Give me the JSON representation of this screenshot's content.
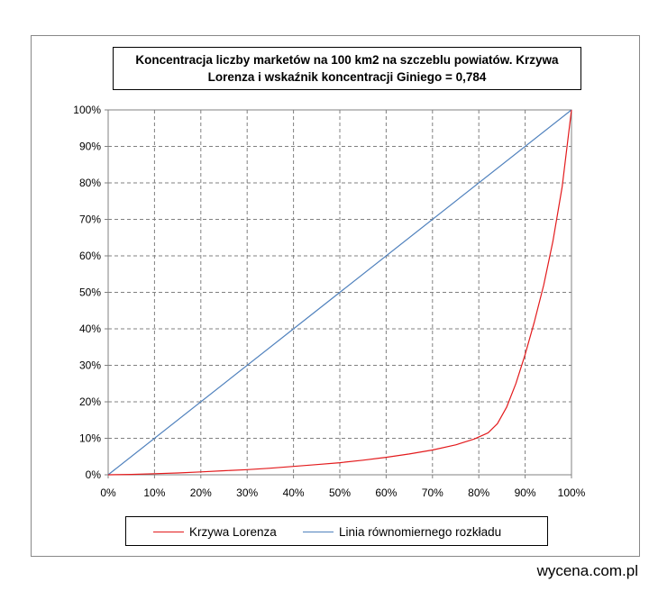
{
  "chart_data": {
    "type": "line",
    "title": "Koncentracja liczby marketów na 100 km2 na szczeblu powiatów. Krzywa Lorenza i wskaźnik koncentracji Giniego = 0,784",
    "xlabel": "",
    "ylabel": "",
    "xlim": [
      0,
      100
    ],
    "ylim": [
      0,
      100
    ],
    "x_ticks": [
      "0%",
      "10%",
      "20%",
      "30%",
      "40%",
      "50%",
      "60%",
      "70%",
      "80%",
      "90%",
      "100%"
    ],
    "y_ticks": [
      "0%",
      "10%",
      "20%",
      "30%",
      "40%",
      "50%",
      "60%",
      "70%",
      "80%",
      "90%",
      "100%"
    ],
    "grid": true,
    "legend_position": "bottom",
    "series": [
      {
        "name": "Krzywa Lorenza",
        "color": "#e31a1c",
        "x": [
          0,
          5,
          10,
          15,
          20,
          25,
          30,
          35,
          40,
          45,
          50,
          55,
          60,
          65,
          70,
          75,
          79,
          82,
          84,
          86,
          88,
          90,
          92,
          94,
          96,
          98,
          100
        ],
        "y": [
          0,
          0.1,
          0.3,
          0.5,
          0.8,
          1.1,
          1.4,
          1.8,
          2.3,
          2.8,
          3.3,
          4.0,
          4.8,
          5.7,
          6.8,
          8.2,
          9.8,
          11.5,
          14.0,
          18.5,
          25.0,
          33.0,
          42.0,
          52.0,
          64.0,
          79.0,
          100
        ]
      },
      {
        "name": "Linia równomiernego rozkładu",
        "color": "#4f81bd",
        "x": [
          0,
          100
        ],
        "y": [
          0,
          100
        ]
      }
    ]
  },
  "watermark": "wycena.com.pl"
}
